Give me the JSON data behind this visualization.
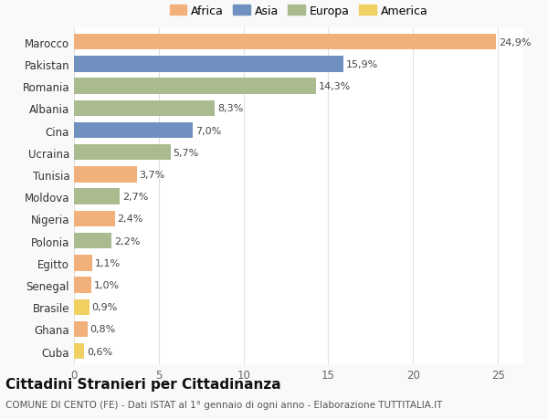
{
  "countries": [
    "Marocco",
    "Pakistan",
    "Romania",
    "Albania",
    "Cina",
    "Ucraina",
    "Tunisia",
    "Moldova",
    "Nigeria",
    "Polonia",
    "Egitto",
    "Senegal",
    "Brasile",
    "Ghana",
    "Cuba"
  ],
  "values": [
    24.9,
    15.9,
    14.3,
    8.3,
    7.0,
    5.7,
    3.7,
    2.7,
    2.4,
    2.2,
    1.1,
    1.0,
    0.9,
    0.8,
    0.6
  ],
  "labels": [
    "24,9%",
    "15,9%",
    "14,3%",
    "8,3%",
    "7,0%",
    "5,7%",
    "3,7%",
    "2,7%",
    "2,4%",
    "2,2%",
    "1,1%",
    "1,0%",
    "0,9%",
    "0,8%",
    "0,6%"
  ],
  "continents": [
    "Africa",
    "Asia",
    "Europa",
    "Europa",
    "Asia",
    "Europa",
    "Africa",
    "Europa",
    "Africa",
    "Europa",
    "Africa",
    "Africa",
    "America",
    "Africa",
    "America"
  ],
  "colors": {
    "Africa": "#F2B07A",
    "Asia": "#7090C0",
    "Europa": "#AABB90",
    "America": "#F0D060"
  },
  "legend_order": [
    "Africa",
    "Asia",
    "Europa",
    "America"
  ],
  "title": "Cittadini Stranieri per Cittadinanza",
  "subtitle": "COMUNE DI CENTO (FE) - Dati ISTAT al 1° gennaio di ogni anno - Elaborazione TUTTITALIA.IT",
  "xlim": [
    0,
    26.5
  ],
  "xticks": [
    0,
    5,
    10,
    15,
    20,
    25
  ],
  "background_color": "#f9f9f9",
  "plot_bg": "#ffffff",
  "grid_color": "#e0e0e0",
  "bar_height": 0.72,
  "label_fontsize": 8,
  "ytick_fontsize": 8.5,
  "xtick_fontsize": 8.5,
  "title_fontsize": 11,
  "subtitle_fontsize": 7.5,
  "legend_fontsize": 9
}
